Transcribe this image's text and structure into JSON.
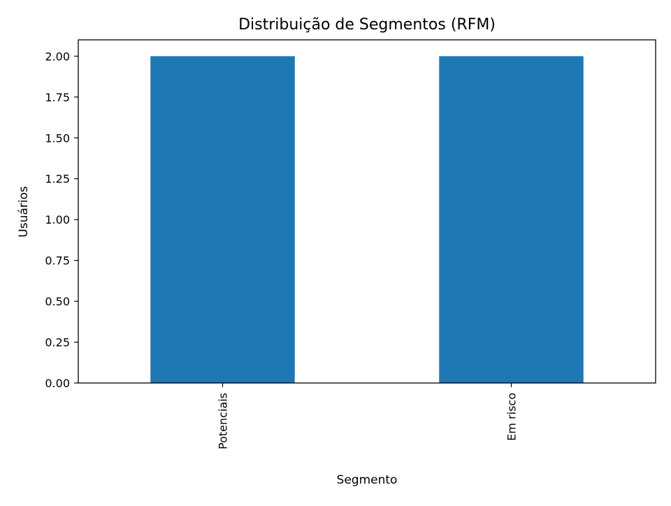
{
  "chart_data": {
    "type": "bar",
    "title": "Distribuição de Segmentos (RFM)",
    "xlabel": "Segmento",
    "ylabel": "Usuários",
    "categories": [
      "Potenciais",
      "Em risco"
    ],
    "values": [
      2,
      2
    ],
    "ylim": [
      0,
      2.1
    ],
    "yticks": [
      "0.00",
      "0.25",
      "0.50",
      "0.75",
      "1.00",
      "1.25",
      "1.50",
      "1.75",
      "2.00"
    ],
    "x_tick_rotation": "vertical",
    "grid": false,
    "legend": "none",
    "bar_color": "#1f77b4"
  }
}
